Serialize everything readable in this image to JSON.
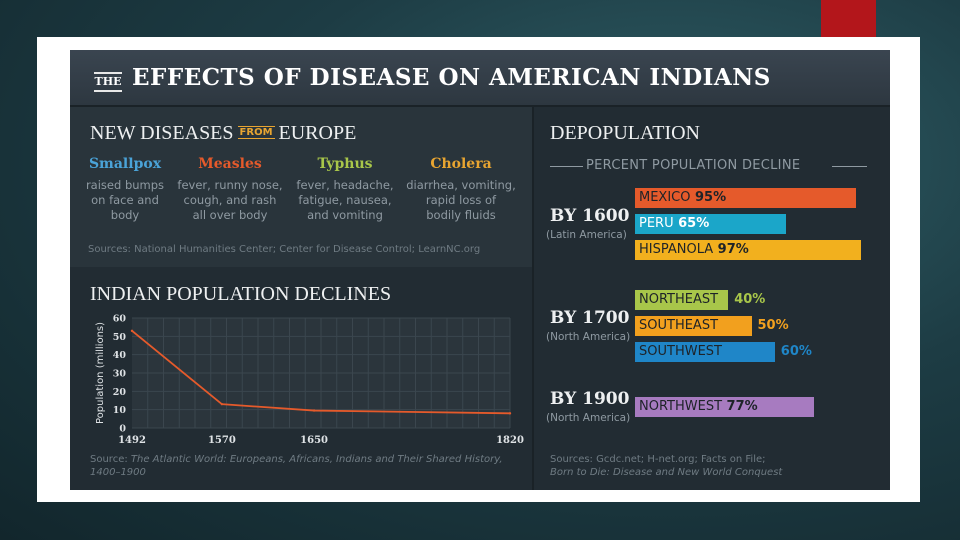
{
  "title": {
    "badge": "THE",
    "text": "EFFECTS OF DISEASE ON AMERICAN INDIANS"
  },
  "diseases": {
    "heading_left": "NEW DISEASES",
    "heading_from": "FROM",
    "heading_right": "EUROPE",
    "items": [
      {
        "name": "Smallpox",
        "color": "#4aa3d8",
        "lines": [
          "raised bumps",
          "on face and",
          "body"
        ]
      },
      {
        "name": "Measles",
        "color": "#e55a2b",
        "lines": [
          "fever, runny nose,",
          "cough, and rash",
          "all over body"
        ]
      },
      {
        "name": "Typhus",
        "color": "#a8c64a",
        "lines": [
          "fever, headache,",
          "fatigue, nausea,",
          "and vomiting"
        ]
      },
      {
        "name": "Cholera",
        "color": "#e8a531",
        "lines": [
          "diarrhea, vomiting,",
          "rapid loss of",
          "bodily fluids"
        ]
      }
    ],
    "source": "Sources: National Humanities Center; Center for Disease Control; LearnNC.org"
  },
  "population": {
    "heading": "INDIAN POPULATION DECLINES",
    "source_prefix": "Source: ",
    "source_line1": "The Atlantic World: Europeans, Africans, Indians and Their Shared History,",
    "source_line2": "1400–1900"
  },
  "chart_data": {
    "type": "line",
    "ylabel": "Population (millions)",
    "x_ticks": [
      "1492",
      "1570",
      "1650",
      "1820"
    ],
    "y_ticks": [
      0,
      10,
      20,
      30,
      40,
      50,
      60
    ],
    "xlim": [
      1492,
      1820
    ],
    "ylim": [
      0,
      60
    ],
    "x": [
      1492,
      1570,
      1650,
      1820
    ],
    "values": [
      53,
      13,
      9.5,
      8
    ],
    "line_color": "#e55a2b",
    "grid": true
  },
  "depopulation": {
    "heading": "DEPOPULATION",
    "subheading": "PERCENT POPULATION DECLINE",
    "groups": [
      {
        "label": "BY 1600",
        "sub": "(Latin America)",
        "bars": [
          {
            "name": "MEXICO",
            "pct": 95,
            "pct_label": "95%",
            "color": "#e55a2b",
            "text_color": "#1e2328",
            "pct_color": "#1e2328"
          },
          {
            "name": "PERU",
            "pct": 65,
            "pct_label": "65%",
            "color": "#1ba6c9",
            "text_color": "#ffffff",
            "pct_color": "#ffffff"
          },
          {
            "name": "HISPANOLA",
            "pct": 97,
            "pct_label": "97%",
            "color": "#f2b01e",
            "text_color": "#1e2328",
            "pct_color": "#1e2328"
          }
        ]
      },
      {
        "label": "BY 1700",
        "sub": "(North America)",
        "bars": [
          {
            "name": "NORTHEAST",
            "pct": 40,
            "pct_label": "40%",
            "color": "#a8c64a",
            "text_color": "#1e2328",
            "pct_color": "#a8c64a"
          },
          {
            "name": "SOUTHEAST",
            "pct": 50,
            "pct_label": "50%",
            "color": "#f2a01e",
            "text_color": "#1e2328",
            "pct_color": "#f2a01e"
          },
          {
            "name": "SOUTHWEST",
            "pct": 60,
            "pct_label": "60%",
            "color": "#1f86c8",
            "text_color": "#1e2328",
            "pct_color": "#1f86c8"
          }
        ]
      },
      {
        "label": "BY 1900",
        "sub": "(North America)",
        "bars": [
          {
            "name": "NORTHWEST",
            "pct": 77,
            "pct_label": "77%",
            "color": "#a77bc0",
            "text_color": "#1e2328",
            "pct_color": "#1e2328"
          }
        ]
      }
    ],
    "source_line1": "Sources: Gcdc.net; H-net.org; Facts on File;",
    "source_line2": "Born to Die: Disease and New World Conquest"
  }
}
